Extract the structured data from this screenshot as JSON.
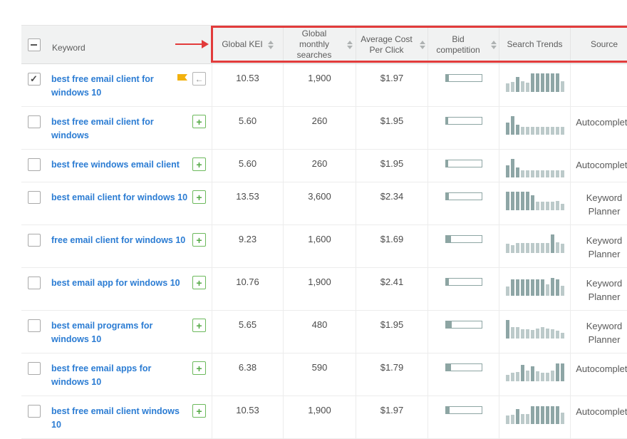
{
  "colors": {
    "highlight_red": "#E23B3B",
    "keyword_link_blue": "#2B7CD3",
    "trend_bar_dark": "#8EA6A6",
    "trend_bar_light": "#BCCACA",
    "bid_bar_fill": "#8DA5A3",
    "add_icon_green": "#54A845",
    "flag_amber": "#F2B10E",
    "header_bg": "#F1F2F2"
  },
  "header": {
    "select_all_state": "indeterminate",
    "columns": [
      {
        "label": "Keyword",
        "sortable": false
      },
      {
        "label": "Global KEI",
        "sortable": true
      },
      {
        "label": "Global monthly searches",
        "sortable": true
      },
      {
        "label": "Average Cost Per Click",
        "sortable": true
      },
      {
        "label": "Bid competition",
        "sortable": true
      },
      {
        "label": "Search Trends",
        "sortable": false
      },
      {
        "label": "Source",
        "sortable": false
      }
    ]
  },
  "rows": [
    {
      "keyword": "best free email client for windows 10",
      "checked": true,
      "flagged": true,
      "action_icon": "move-back",
      "global_kei": "10.53",
      "global_monthly_searches": "1,900",
      "average_cost_per_click": "$1.97",
      "bid_competition_pct": 8,
      "search_trends": [
        [
          12,
          "l"
        ],
        [
          14,
          "l"
        ],
        [
          21,
          "d"
        ],
        [
          15,
          "l"
        ],
        [
          13,
          "l"
        ],
        [
          26,
          "d"
        ],
        [
          26,
          "d"
        ],
        [
          26,
          "d"
        ],
        [
          26,
          "d"
        ],
        [
          26,
          "d"
        ],
        [
          26,
          "d"
        ],
        [
          15,
          "l"
        ]
      ],
      "source": ""
    },
    {
      "keyword": "best free email client for windows",
      "checked": false,
      "flagged": false,
      "action_icon": "add",
      "global_kei": "5.60",
      "global_monthly_searches": "260",
      "average_cost_per_click": "$1.95",
      "bid_competition_pct": 6,
      "search_trends": [
        [
          17,
          "d"
        ],
        [
          26,
          "d"
        ],
        [
          14,
          "d"
        ],
        [
          11,
          "l"
        ],
        [
          11,
          "l"
        ],
        [
          11,
          "l"
        ],
        [
          11,
          "l"
        ],
        [
          11,
          "l"
        ],
        [
          11,
          "l"
        ],
        [
          11,
          "l"
        ],
        [
          11,
          "l"
        ],
        [
          11,
          "l"
        ]
      ],
      "source": "Autocomplete"
    },
    {
      "keyword": "best free windows email client",
      "checked": false,
      "flagged": false,
      "action_icon": "add",
      "global_kei": "5.60",
      "global_monthly_searches": "260",
      "average_cost_per_click": "$1.95",
      "bid_competition_pct": 6,
      "search_trends": [
        [
          17,
          "d"
        ],
        [
          26,
          "d"
        ],
        [
          14,
          "d"
        ],
        [
          10,
          "l"
        ],
        [
          10,
          "l"
        ],
        [
          10,
          "l"
        ],
        [
          10,
          "l"
        ],
        [
          10,
          "l"
        ],
        [
          10,
          "l"
        ],
        [
          10,
          "l"
        ],
        [
          10,
          "l"
        ],
        [
          10,
          "l"
        ]
      ],
      "source": "Autocomplete"
    },
    {
      "keyword": "best email client for windows 10",
      "checked": false,
      "flagged": false,
      "action_icon": "add",
      "global_kei": "13.53",
      "global_monthly_searches": "3,600",
      "average_cost_per_click": "$2.34",
      "bid_competition_pct": 8,
      "search_trends": [
        [
          26,
          "d"
        ],
        [
          26,
          "d"
        ],
        [
          26,
          "d"
        ],
        [
          26,
          "d"
        ],
        [
          26,
          "d"
        ],
        [
          21,
          "d"
        ],
        [
          12,
          "l"
        ],
        [
          12,
          "l"
        ],
        [
          12,
          "l"
        ],
        [
          12,
          "l"
        ],
        [
          13,
          "l"
        ],
        [
          9,
          "l"
        ]
      ],
      "source": "Keyword Planner"
    },
    {
      "keyword": "free email client for windows 10",
      "checked": false,
      "flagged": false,
      "action_icon": "add",
      "global_kei": "9.23",
      "global_monthly_searches": "1,600",
      "average_cost_per_click": "$1.69",
      "bid_competition_pct": 14,
      "search_trends": [
        [
          13,
          "l"
        ],
        [
          11,
          "l"
        ],
        [
          14,
          "l"
        ],
        [
          14,
          "l"
        ],
        [
          14,
          "l"
        ],
        [
          14,
          "l"
        ],
        [
          14,
          "l"
        ],
        [
          14,
          "l"
        ],
        [
          14,
          "l"
        ],
        [
          26,
          "d"
        ],
        [
          15,
          "l"
        ],
        [
          13,
          "l"
        ]
      ],
      "source": "Keyword Planner"
    },
    {
      "keyword": "best email app for windows 10",
      "checked": false,
      "flagged": false,
      "action_icon": "add",
      "global_kei": "10.76",
      "global_monthly_searches": "1,900",
      "average_cost_per_click": "$2.41",
      "bid_competition_pct": 8,
      "search_trends": [
        [
          13,
          "l"
        ],
        [
          23,
          "d"
        ],
        [
          23,
          "d"
        ],
        [
          23,
          "d"
        ],
        [
          23,
          "d"
        ],
        [
          23,
          "d"
        ],
        [
          23,
          "d"
        ],
        [
          23,
          "d"
        ],
        [
          16,
          "l"
        ],
        [
          25,
          "d"
        ],
        [
          23,
          "d"
        ],
        [
          14,
          "l"
        ]
      ],
      "source": "Keyword Planner"
    },
    {
      "keyword": "best email programs for windows 10",
      "checked": false,
      "flagged": false,
      "action_icon": "add",
      "global_kei": "5.65",
      "global_monthly_searches": "480",
      "average_cost_per_click": "$1.95",
      "bid_competition_pct": 16,
      "search_trends": [
        [
          26,
          "d"
        ],
        [
          16,
          "l"
        ],
        [
          16,
          "l"
        ],
        [
          13,
          "l"
        ],
        [
          13,
          "l"
        ],
        [
          12,
          "l"
        ],
        [
          14,
          "l"
        ],
        [
          16,
          "l"
        ],
        [
          14,
          "l"
        ],
        [
          13,
          "l"
        ],
        [
          11,
          "l"
        ],
        [
          8,
          "l"
        ]
      ],
      "source": "Keyword Planner"
    },
    {
      "keyword": "best free email apps for windows 10",
      "checked": false,
      "flagged": false,
      "action_icon": "add",
      "global_kei": "6.38",
      "global_monthly_searches": "590",
      "average_cost_per_click": "$1.79",
      "bid_competition_pct": 14,
      "search_trends": [
        [
          9,
          "l"
        ],
        [
          12,
          "l"
        ],
        [
          13,
          "l"
        ],
        [
          23,
          "d"
        ],
        [
          15,
          "l"
        ],
        [
          21,
          "d"
        ],
        [
          14,
          "l"
        ],
        [
          12,
          "l"
        ],
        [
          12,
          "l"
        ],
        [
          15,
          "l"
        ],
        [
          25,
          "d"
        ],
        [
          25,
          "d"
        ]
      ],
      "source": "Autocomplete"
    },
    {
      "keyword": "best free email client windows 10",
      "checked": false,
      "flagged": false,
      "action_icon": "add",
      "global_kei": "10.53",
      "global_monthly_searches": "1,900",
      "average_cost_per_click": "$1.97",
      "bid_competition_pct": 10,
      "search_trends": [
        [
          12,
          "l"
        ],
        [
          13,
          "l"
        ],
        [
          21,
          "d"
        ],
        [
          14,
          "l"
        ],
        [
          14,
          "l"
        ],
        [
          25,
          "d"
        ],
        [
          25,
          "d"
        ],
        [
          25,
          "d"
        ],
        [
          25,
          "d"
        ],
        [
          25,
          "d"
        ],
        [
          25,
          "d"
        ],
        [
          16,
          "l"
        ]
      ],
      "source": "Autocomplete"
    }
  ]
}
